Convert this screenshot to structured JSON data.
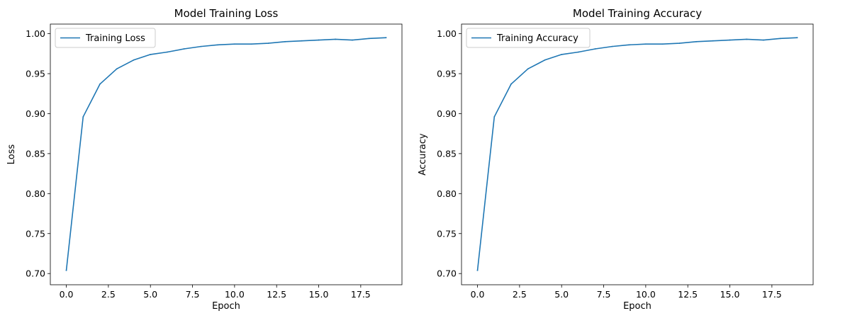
{
  "chart_data": [
    {
      "type": "line",
      "title": "Model Training Loss",
      "xlabel": "Epoch",
      "ylabel": "Loss",
      "xlim": [
        -0.95,
        19.95
      ],
      "ylim": [
        0.686,
        1.012
      ],
      "x_ticks": [
        0,
        2.5,
        5,
        7.5,
        10,
        12.5,
        15,
        17.5
      ],
      "x_tick_labels": [
        "0.0",
        "2.5",
        "5.0",
        "7.5",
        "10.0",
        "12.5",
        "15.0",
        "17.5"
      ],
      "y_ticks": [
        0.7,
        0.75,
        0.8,
        0.85,
        0.9,
        0.95,
        1.0
      ],
      "y_tick_labels": [
        "0.70",
        "0.75",
        "0.80",
        "0.85",
        "0.90",
        "0.95",
        "1.00"
      ],
      "grid": false,
      "legend_position": "top-left",
      "series": [
        {
          "name": "Training Loss",
          "color": "#1f77b4",
          "x": [
            0,
            1,
            2,
            3,
            4,
            5,
            6,
            7,
            8,
            9,
            10,
            11,
            12,
            13,
            14,
            15,
            16,
            17,
            18,
            19
          ],
          "values": [
            0.704,
            0.896,
            0.937,
            0.956,
            0.967,
            0.974,
            0.977,
            0.981,
            0.984,
            0.986,
            0.987,
            0.987,
            0.988,
            0.99,
            0.991,
            0.992,
            0.993,
            0.992,
            0.994,
            0.995
          ]
        }
      ]
    },
    {
      "type": "line",
      "title": "Model Training Accuracy",
      "xlabel": "Epoch",
      "ylabel": "Accuracy",
      "xlim": [
        -0.95,
        19.95
      ],
      "ylim": [
        0.686,
        1.012
      ],
      "x_ticks": [
        0,
        2.5,
        5,
        7.5,
        10,
        12.5,
        15,
        17.5
      ],
      "x_tick_labels": [
        "0.0",
        "2.5",
        "5.0",
        "7.5",
        "10.0",
        "12.5",
        "15.0",
        "17.5"
      ],
      "y_ticks": [
        0.7,
        0.75,
        0.8,
        0.85,
        0.9,
        0.95,
        1.0
      ],
      "y_tick_labels": [
        "0.70",
        "0.75",
        "0.80",
        "0.85",
        "0.90",
        "0.95",
        "1.00"
      ],
      "grid": false,
      "legend_position": "top-left",
      "series": [
        {
          "name": "Training Accuracy",
          "color": "#1f77b4",
          "x": [
            0,
            1,
            2,
            3,
            4,
            5,
            6,
            7,
            8,
            9,
            10,
            11,
            12,
            13,
            14,
            15,
            16,
            17,
            18,
            19
          ],
          "values": [
            0.704,
            0.896,
            0.937,
            0.956,
            0.967,
            0.974,
            0.977,
            0.981,
            0.984,
            0.986,
            0.987,
            0.987,
            0.988,
            0.99,
            0.991,
            0.992,
            0.993,
            0.992,
            0.994,
            0.995
          ]
        }
      ]
    }
  ]
}
